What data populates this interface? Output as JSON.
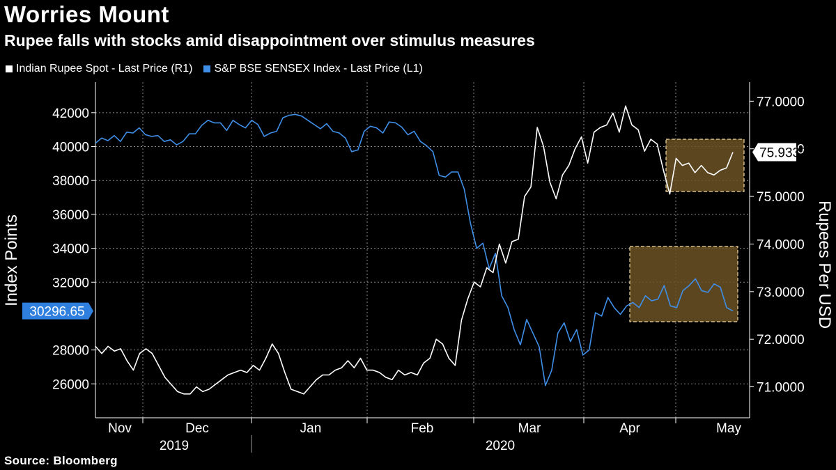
{
  "title": "Worries Mount",
  "subtitle": "Rupee falls with stocks amid disappointment over stimulus measures",
  "legend": [
    {
      "label": "Indian Rupee Spot - Last Price (R1)",
      "color": "#ffffff"
    },
    {
      "label": "S&P BSE SENSEX Index - Last Price (L1)",
      "color": "#3f8fe8"
    }
  ],
  "source": "Source: Bloomberg",
  "colors": {
    "rupee": "#ffffff",
    "sensex": "#3f8fe8",
    "highlight_fill": "#6b5226",
    "highlight_stroke": "#f2d9a0",
    "grid": "#8a8a8a"
  },
  "chart_data": {
    "type": "line",
    "title": "Worries Mount",
    "subtitle": "Rupee falls with stocks amid disappointment over stimulus measures",
    "ylabel_left": "Index Points",
    "ylabel_right": "Rupees Per USD",
    "ylim_left": [
      24000,
      43800
    ],
    "ylim_right": [
      70.35,
      77.4
    ],
    "yticks_left": [
      "42000",
      "40000",
      "38000",
      "36000",
      "34000",
      "32000",
      "28000",
      "26000"
    ],
    "yticks_right": [
      "77.0000",
      "76.0000",
      "75.0000",
      "74.0000",
      "73.0000",
      "72.0000",
      "71.0000"
    ],
    "x_month_labels": [
      "Nov",
      "Dec",
      "Jan",
      "Feb",
      "Mar",
      "Apr",
      "May"
    ],
    "x_year_labels": [
      "2019",
      "2020"
    ],
    "grid": true,
    "last_value_labels": {
      "left": "30296.65",
      "right": "75.9337"
    },
    "series": [
      {
        "name": "S&P BSE SENSEX Index - Last Price (L1)",
        "axis": "left",
        "values": [
          40200,
          40500,
          40350,
          40650,
          40300,
          40850,
          40800,
          41100,
          40700,
          40600,
          40650,
          40300,
          40400,
          40100,
          40300,
          40750,
          40750,
          41250,
          41550,
          41400,
          41400,
          40950,
          41550,
          41300,
          41100,
          41550,
          41300,
          40600,
          40800,
          40900,
          41700,
          41850,
          41900,
          41800,
          41550,
          41300,
          41050,
          41350,
          40900,
          40800,
          40500,
          39700,
          39800,
          40900,
          41200,
          41100,
          40800,
          41450,
          41400,
          41150,
          40700,
          40900,
          40300,
          40050,
          39700,
          38300,
          38200,
          38500,
          38500,
          37500,
          35500,
          34000,
          34300,
          32800,
          33700,
          31200,
          30500,
          29200,
          28300,
          29800,
          29000,
          28200,
          25900,
          26800,
          29000,
          29600,
          28500,
          29200,
          27700,
          28000,
          30200,
          30000,
          31100,
          30500,
          30100,
          30600,
          30800,
          30500,
          31200,
          30900,
          31000,
          31800,
          30600,
          30500,
          31500,
          31800,
          32200,
          31500,
          31400,
          31900,
          31700,
          30500,
          30300
        ]
      },
      {
        "name": "Indian Rupee Spot - Last Price (R1)",
        "axis": "right",
        "values": [
          71.85,
          71.7,
          71.85,
          71.75,
          71.8,
          71.55,
          71.35,
          71.7,
          71.8,
          71.7,
          71.45,
          71.2,
          71.05,
          70.9,
          70.85,
          70.85,
          71.0,
          70.9,
          70.95,
          71.05,
          71.15,
          71.25,
          71.3,
          71.35,
          71.3,
          71.45,
          71.35,
          71.6,
          71.9,
          71.7,
          71.3,
          70.95,
          70.9,
          70.85,
          71.0,
          71.15,
          71.25,
          71.25,
          71.35,
          71.4,
          71.55,
          71.4,
          71.6,
          71.35,
          71.35,
          71.3,
          71.2,
          71.15,
          71.35,
          71.25,
          71.3,
          71.25,
          71.5,
          71.6,
          72.0,
          71.9,
          71.6,
          71.45,
          72.4,
          72.85,
          73.2,
          73.1,
          73.5,
          73.4,
          74.0,
          73.6,
          74.05,
          74.1,
          75.0,
          75.2,
          76.45,
          76.05,
          75.3,
          74.95,
          75.45,
          75.65,
          76.0,
          76.25,
          75.7,
          76.35,
          76.45,
          76.5,
          76.75,
          76.35,
          76.9,
          76.5,
          76.4,
          75.95,
          76.2,
          76.1,
          75.55,
          75.05,
          75.8,
          75.65,
          75.7,
          75.5,
          75.65,
          75.5,
          75.45,
          75.55,
          75.6,
          75.93
        ]
      }
    ]
  }
}
